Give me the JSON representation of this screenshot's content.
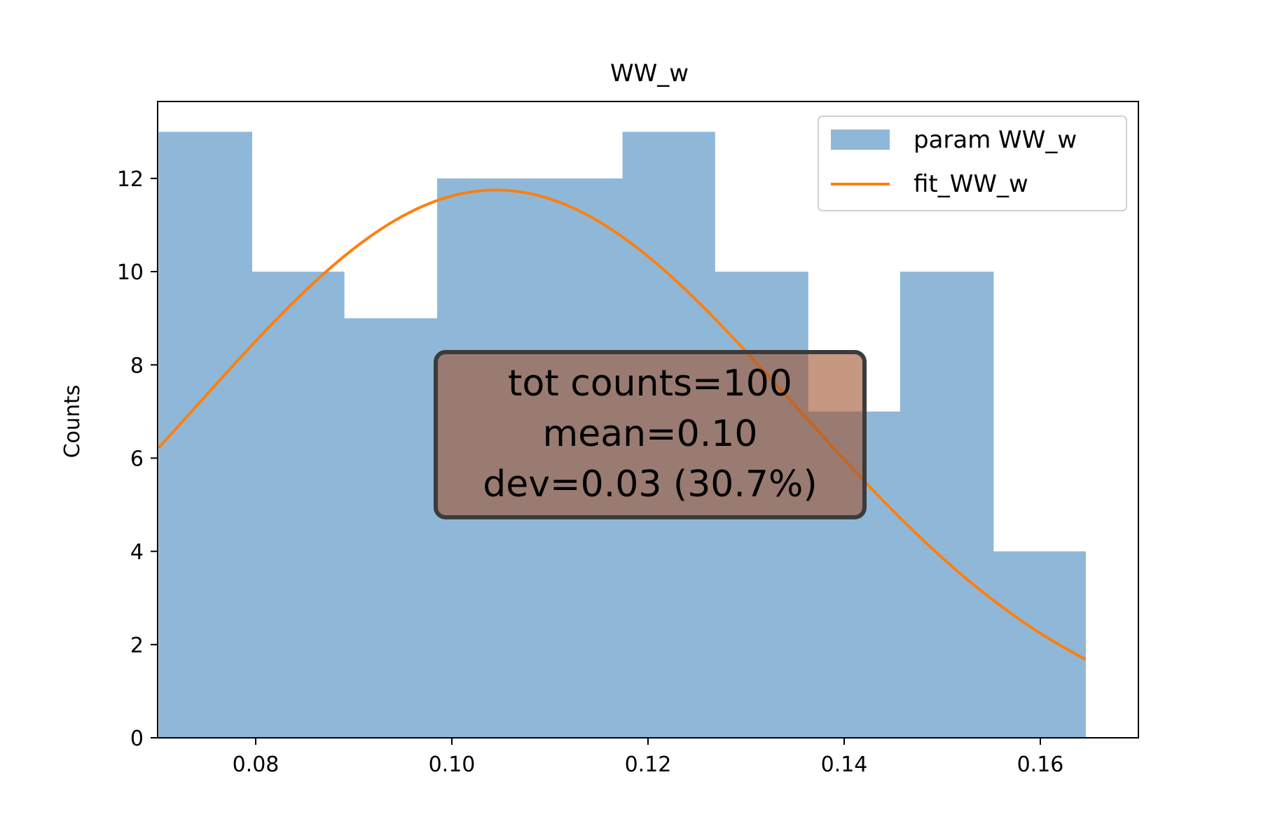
{
  "chart_data": {
    "type": "bar",
    "title": "WW_w",
    "xlabel": "",
    "ylabel": "Counts",
    "xlim": [
      0.07,
      0.17
    ],
    "ylim": [
      0,
      13.65
    ],
    "grid": false,
    "x_ticks": [
      {
        "value": 0.08,
        "label": "0.08"
      },
      {
        "value": 0.1,
        "label": "0.10"
      },
      {
        "value": 0.12,
        "label": "0.12"
      },
      {
        "value": 0.14,
        "label": "0.14"
      },
      {
        "value": 0.16,
        "label": "0.16"
      }
    ],
    "y_ticks": [
      {
        "value": 0,
        "label": "0"
      },
      {
        "value": 2,
        "label": "2"
      },
      {
        "value": 4,
        "label": "4"
      },
      {
        "value": 6,
        "label": "6"
      },
      {
        "value": 8,
        "label": "8"
      },
      {
        "value": 10,
        "label": "10"
      },
      {
        "value": 12,
        "label": "12"
      }
    ],
    "histogram": {
      "name": "param WW_w",
      "color": "#8fb8d8",
      "bin_edges": [
        0.0701,
        0.0796,
        0.089,
        0.0985,
        0.1079,
        0.1174,
        0.1268,
        0.1363,
        0.1457,
        0.1552,
        0.1646
      ],
      "counts": [
        13,
        10,
        9,
        12,
        12,
        13,
        10,
        7,
        10,
        4
      ]
    },
    "fit": {
      "name": "fit_WW_w",
      "color": "#ff7f0e",
      "type": "gaussian",
      "amplitude": 11.75,
      "mean": 0.1045,
      "sigma": 0.0305,
      "x_range": [
        0.0701,
        0.1646
      ]
    },
    "legend": {
      "placement": "upper-right",
      "entries": [
        "param WW_w",
        "fit_WW_w"
      ]
    },
    "annotation": {
      "lines": [
        "tot counts=100",
        "mean=0.10",
        "dev=0.03 (30.7%)"
      ],
      "face_color": "#a0522d",
      "alpha": 0.6
    }
  }
}
